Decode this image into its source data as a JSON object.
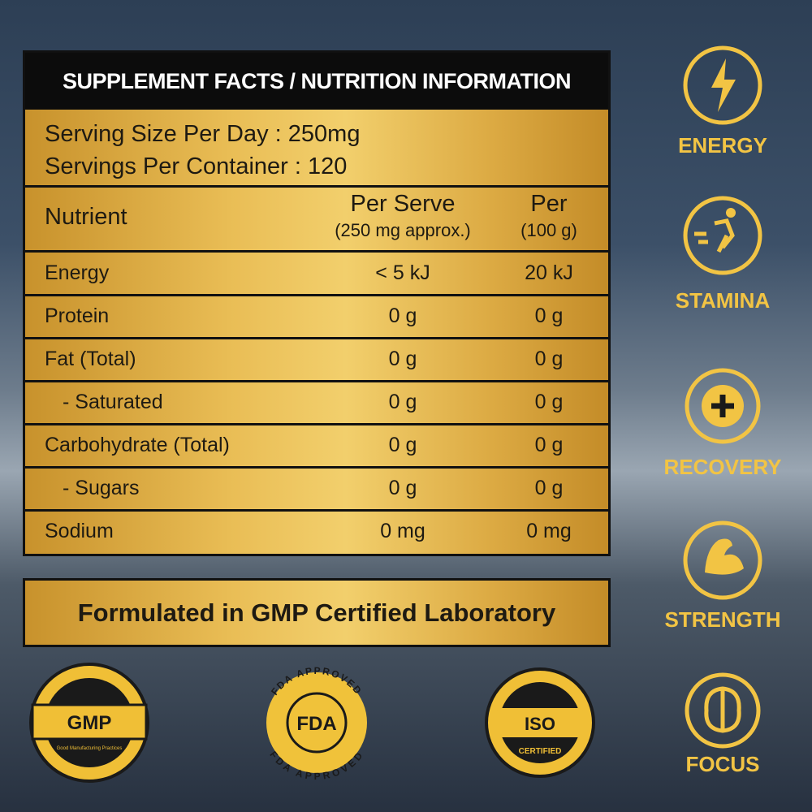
{
  "facts": {
    "title": "SUPPLEMENT FACTS / NUTRITION INFORMATION",
    "serving_size": "Serving Size Per Day : 250mg",
    "servings_per_container": "Servings Per Container : 120",
    "headers": {
      "nutrient": "Nutrient",
      "per_serve": "Per Serve",
      "per_serve_note": "(250 mg approx.)",
      "per_100": "Per",
      "per_100_note": "(100 g)"
    },
    "rows": [
      [
        "Energy",
        "< 5 kJ",
        "20 kJ"
      ],
      [
        "Protein",
        "0 g",
        "0 g"
      ],
      [
        "Fat (Total)",
        "0 g",
        "0 g"
      ],
      [
        "- Saturated",
        "0 g",
        "0 g"
      ],
      [
        "Carbohydrate (Total)",
        "0 g",
        "0 g"
      ],
      [
        "- Sugars",
        "0 g",
        "0 g"
      ],
      [
        "Sodium",
        "0 mg",
        "0 mg"
      ]
    ]
  },
  "banner": "Formulated in GMP Certified Laboratory",
  "badges": [
    {
      "label": "GMP",
      "subtitle": "Good Manufacturing Practices"
    },
    {
      "label": "FDA",
      "ring_texts": [
        "FDA APPROVED",
        "FDA APPROVED"
      ]
    },
    {
      "label": "ISO",
      "subtitle": "CERTIFIED"
    }
  ],
  "benefits": [
    "ENERGY",
    "STAMINA",
    "RECOVERY",
    "STRENGTH",
    "FOCUS"
  ]
}
